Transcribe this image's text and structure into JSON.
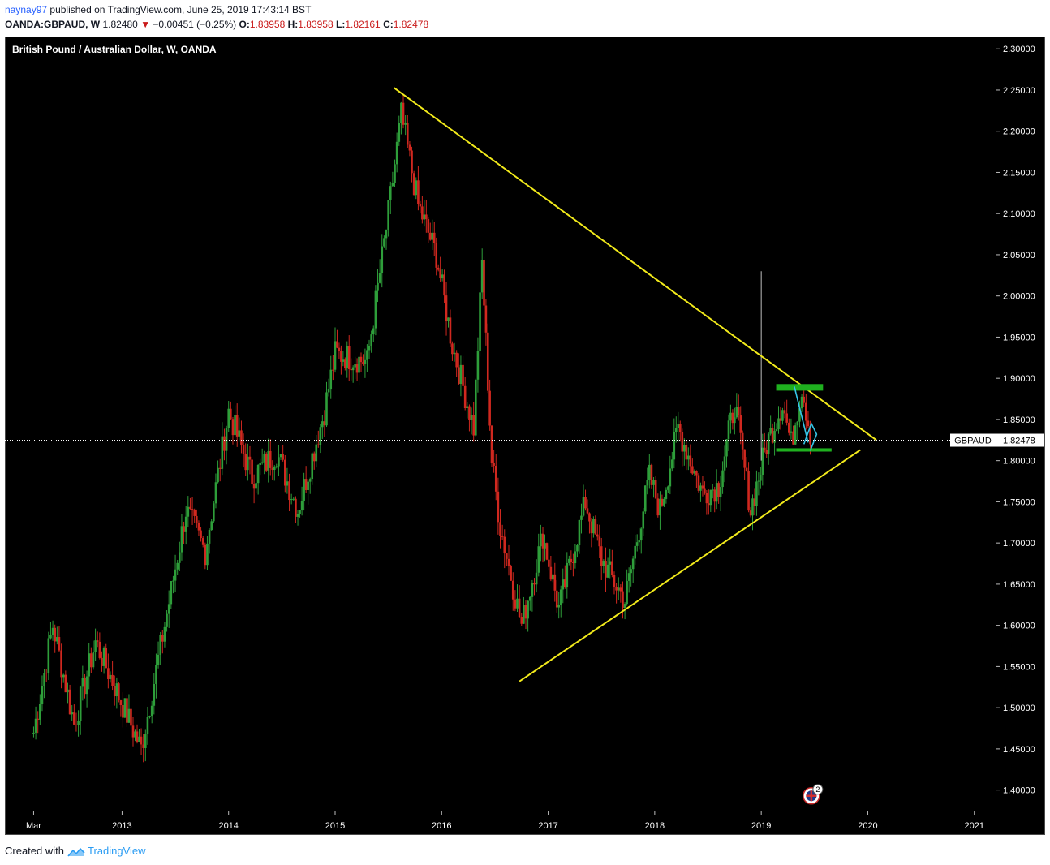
{
  "header": {
    "author": "naynay97",
    "published_text": "published on TradingView.com, June 25, 2019 17:43:14 BST",
    "symbol": "OANDA:GBPAUD, W",
    "last": "1.82480",
    "change_arrow": "▼",
    "change": "−0.00451 (−0.25%)",
    "o_label": "O:",
    "o": "1.83958",
    "h_label": "H:",
    "h": "1.83958",
    "l_label": "L:",
    "l": "1.82161",
    "c_label": "C:",
    "c": "1.82478"
  },
  "footer": {
    "created_with": "Created with",
    "brand": "TradingView"
  },
  "colors": {
    "background": "#000000",
    "up": "#2e9e3a",
    "down": "#d0281f",
    "trendline": "#f2ea1b",
    "zone": "#1fb01f",
    "pattern": "#36c6e8",
    "grid_text": "#ffffff",
    "accent_red": "#c91a1a",
    "brand": "#2a9cf3"
  },
  "chart_data": {
    "type": "candlestick",
    "title": "British Pound / Australian Dollar, W, OANDA",
    "timeframe": "W",
    "ylim": [
      1.375,
      2.315
    ],
    "xlim": [
      2011.9,
      2021.2
    ],
    "y_ticks": [
      "2.30000",
      "2.25000",
      "2.20000",
      "2.15000",
      "2.10000",
      "2.05000",
      "2.00000",
      "1.95000",
      "1.90000",
      "1.85000",
      "1.80000",
      "1.75000",
      "1.70000",
      "1.65000",
      "1.60000",
      "1.55000",
      "1.50000",
      "1.45000",
      "1.40000"
    ],
    "x_ticks": [
      {
        "label": "Mar",
        "x": 2012.17
      },
      {
        "label": "2013",
        "x": 2013.0
      },
      {
        "label": "2014",
        "x": 2014.0
      },
      {
        "label": "2015",
        "x": 2015.0
      },
      {
        "label": "2016",
        "x": 2016.0
      },
      {
        "label": "2017",
        "x": 2017.0
      },
      {
        "label": "2018",
        "x": 2018.0
      },
      {
        "label": "2019",
        "x": 2019.0
      },
      {
        "label": "2020",
        "x": 2020.0
      },
      {
        "label": "2021",
        "x": 2021.0
      }
    ],
    "price_path": [
      [
        2012.17,
        1.47
      ],
      [
        2012.35,
        1.6
      ],
      [
        2012.55,
        1.48
      ],
      [
        2012.75,
        1.58
      ],
      [
        2012.95,
        1.52
      ],
      [
        2013.18,
        1.45
      ],
      [
        2013.4,
        1.6
      ],
      [
        2013.6,
        1.74
      ],
      [
        2013.78,
        1.69
      ],
      [
        2014.0,
        1.86
      ],
      [
        2014.22,
        1.78
      ],
      [
        2014.45,
        1.81
      ],
      [
        2014.65,
        1.74
      ],
      [
        2014.9,
        1.86
      ],
      [
        2015.0,
        1.93
      ],
      [
        2015.3,
        1.92
      ],
      [
        2015.5,
        2.1
      ],
      [
        2015.62,
        2.22
      ],
      [
        2015.78,
        2.11
      ],
      [
        2015.95,
        2.05
      ],
      [
        2016.1,
        1.94
      ],
      [
        2016.3,
        1.84
      ],
      [
        2016.38,
        2.04
      ],
      [
        2016.47,
        1.8
      ],
      [
        2016.55,
        1.72
      ],
      [
        2016.75,
        1.6
      ],
      [
        2016.95,
        1.71
      ],
      [
        2017.1,
        1.62
      ],
      [
        2017.35,
        1.75
      ],
      [
        2017.5,
        1.68
      ],
      [
        2017.72,
        1.63
      ],
      [
        2017.95,
        1.78
      ],
      [
        2018.05,
        1.74
      ],
      [
        2018.22,
        1.84
      ],
      [
        2018.45,
        1.76
      ],
      [
        2018.6,
        1.77
      ],
      [
        2018.75,
        1.87
      ],
      [
        2018.9,
        1.74
      ],
      [
        2019.05,
        1.82
      ],
      [
        2019.2,
        1.87
      ],
      [
        2019.28,
        1.82
      ],
      [
        2019.38,
        1.89
      ],
      [
        2019.48,
        1.82
      ]
    ],
    "wick_spike": {
      "x": 2019.0,
      "high": 2.03,
      "low": 1.8
    },
    "current_price": 1.82478,
    "current_label": "GBPAUD",
    "current_value": "1.82478",
    "trendlines": [
      {
        "name": "upper",
        "color": "#f2ea1b",
        "from": [
          2015.55,
          2.253
        ],
        "to": [
          2020.08,
          1.825
        ]
      },
      {
        "name": "lower",
        "color": "#f2ea1b",
        "from": [
          2016.73,
          1.532
        ],
        "to": [
          2019.93,
          1.813
        ]
      }
    ],
    "zones": [
      {
        "name": "resistance",
        "x1": 2019.14,
        "x2": 2019.58,
        "y1": 1.885,
        "y2": 1.893
      },
      {
        "name": "support",
        "x1": 2019.14,
        "x2": 2019.66,
        "y1": 1.811,
        "y2": 1.815
      }
    ],
    "pattern_lines": [
      {
        "points": [
          [
            2019.31,
            1.89
          ],
          [
            2019.4,
            1.843
          ],
          [
            2019.44,
            1.822
          ]
        ]
      },
      {
        "points": [
          [
            2019.4,
            1.82
          ],
          [
            2019.47,
            1.845
          ],
          [
            2019.52,
            1.832
          ],
          [
            2019.46,
            1.812
          ]
        ]
      }
    ],
    "event_badge": {
      "x": 2019.47,
      "y": 1.393,
      "count": "2"
    }
  }
}
